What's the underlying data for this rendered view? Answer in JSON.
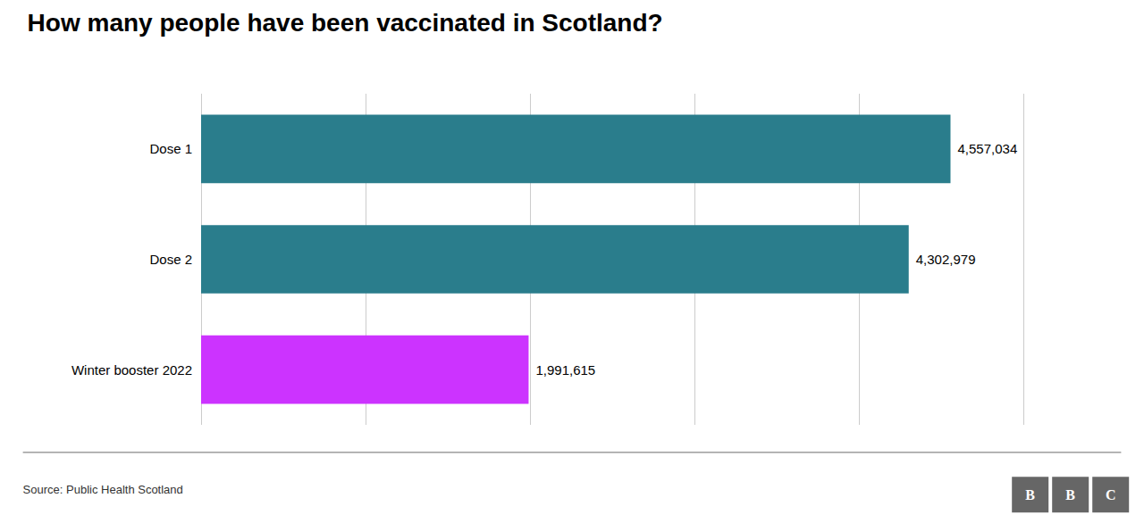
{
  "chart_data": {
    "type": "bar",
    "orientation": "horizontal",
    "title": "How many people have been vaccinated in Scotland?",
    "categories": [
      "Dose 1",
      "Dose 2",
      "Winter booster 2022"
    ],
    "values": [
      4557034,
      4302979,
      1991615
    ],
    "value_labels": [
      "4,557,034",
      "4,302,979",
      "1,991,615"
    ],
    "data_labels": true,
    "colors": [
      "#2a7d8c",
      "#2a7d8c",
      "#cc33ff"
    ],
    "xlim": [
      0,
      5000000
    ],
    "xticks": [
      0,
      1000000,
      2000000,
      3000000,
      4000000,
      5000000
    ],
    "tick_labels": "y",
    "grid": true,
    "source": "Source: Public Health Scotland",
    "logo": [
      "B",
      "B",
      "C"
    ]
  }
}
